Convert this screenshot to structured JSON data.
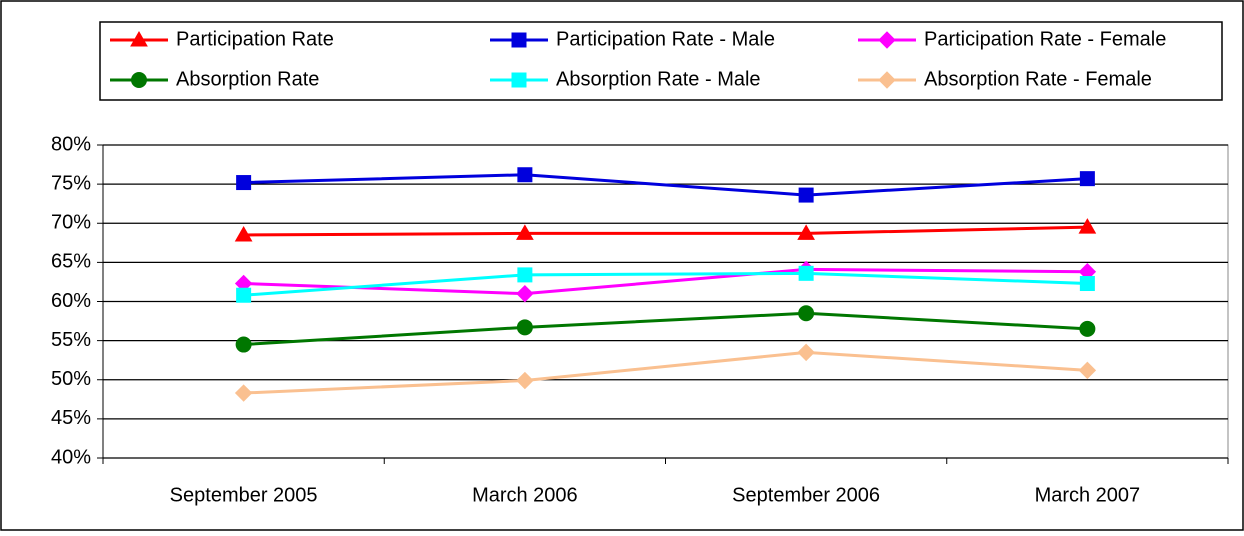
{
  "chart_data": {
    "type": "line",
    "categories": [
      "September 2005",
      "March 2006",
      "September 2006",
      "March 2007"
    ],
    "series": [
      {
        "name": "Participation Rate",
        "color": "#ff0000",
        "marker": "triangle",
        "values": [
          68.5,
          68.7,
          68.7,
          69.5
        ]
      },
      {
        "name": "Participation Rate - Male",
        "color": "#0000dd",
        "marker": "square",
        "values": [
          75.2,
          76.2,
          73.6,
          75.7
        ]
      },
      {
        "name": "Participation Rate - Female",
        "color": "#ff00ff",
        "marker": "diamond",
        "values": [
          62.3,
          61.0,
          64.1,
          63.8
        ]
      },
      {
        "name": "Absorption Rate",
        "color": "#007700",
        "marker": "circle",
        "values": [
          54.5,
          56.7,
          58.5,
          56.5
        ]
      },
      {
        "name": "Absorption Rate - Male",
        "color": "#00ffff",
        "marker": "square",
        "values": [
          60.8,
          63.4,
          63.6,
          62.3
        ]
      },
      {
        "name": "Absorption Rate - Female",
        "color": "#fac090",
        "marker": "diamond",
        "values": [
          48.3,
          49.9,
          53.5,
          51.2
        ]
      }
    ],
    "ylim": [
      40,
      80
    ],
    "yticks": [
      {
        "value": 40,
        "label": "40%"
      },
      {
        "value": 45,
        "label": "45%"
      },
      {
        "value": 50,
        "label": "50%"
      },
      {
        "value": 55,
        "label": "55%"
      },
      {
        "value": 60,
        "label": "60%"
      },
      {
        "value": 65,
        "label": "65%"
      },
      {
        "value": 70,
        "label": "70%"
      },
      {
        "value": 75,
        "label": "75%"
      },
      {
        "value": 80,
        "label": "80%"
      }
    ],
    "grid": true
  }
}
